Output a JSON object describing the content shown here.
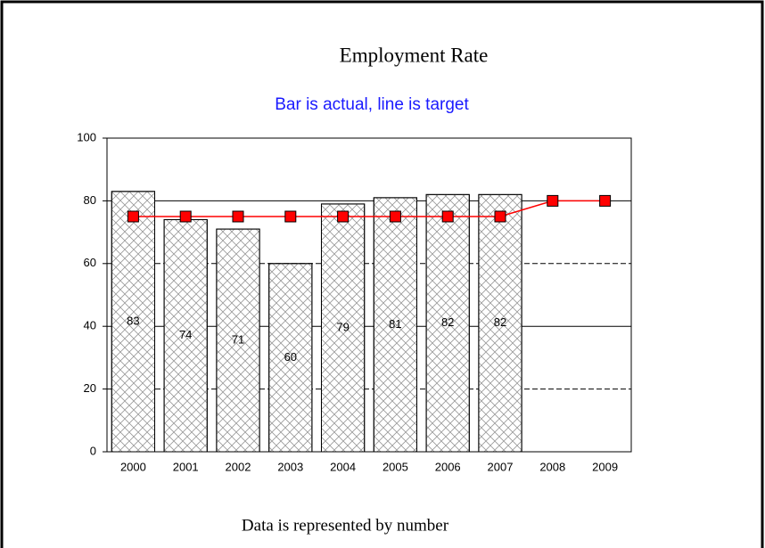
{
  "chart_data": {
    "type": "bar",
    "title": "Employment Rate",
    "subtitle": "Bar is actual, line is target",
    "footer": "Data is represented by number",
    "categories": [
      "2000",
      "2001",
      "2002",
      "2003",
      "2004",
      "2005",
      "2006",
      "2007",
      "2008",
      "2009"
    ],
    "series": [
      {
        "type": "bar",
        "color": "#ffffff",
        "values": [
          83,
          74,
          71,
          60,
          79,
          81,
          82,
          82,
          null,
          null
        ]
      },
      {
        "type": "line",
        "color": "#ff0000",
        "values": [
          75,
          75,
          75,
          75,
          75,
          75,
          75,
          75,
          80,
          80
        ]
      }
    ],
    "ylim": [
      0,
      100
    ],
    "yticks": [
      0,
      20,
      40,
      60,
      80,
      100
    ],
    "grid": true
  }
}
